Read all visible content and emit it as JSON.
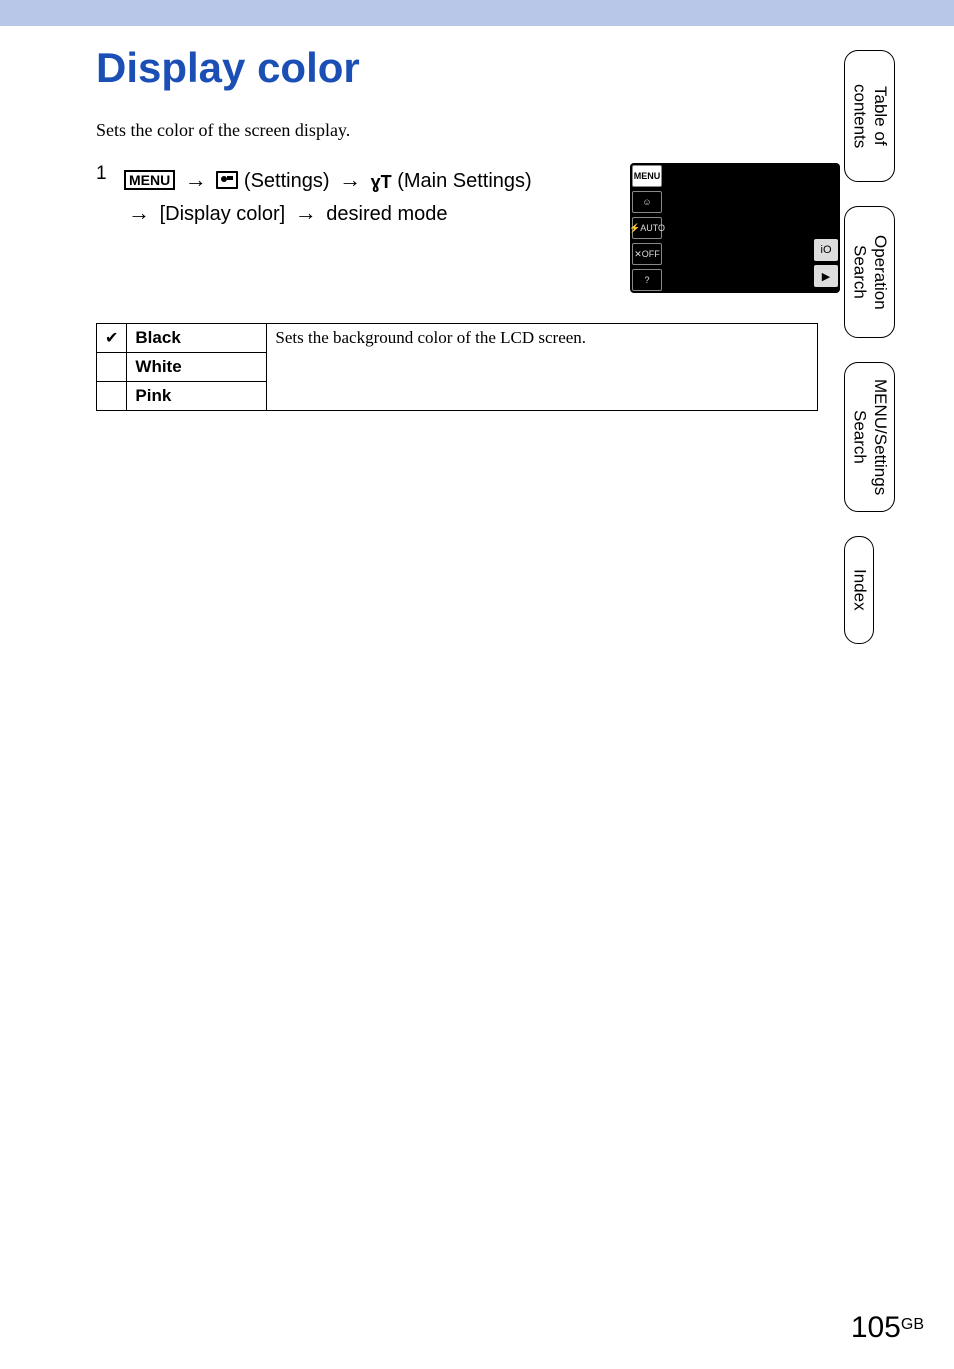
{
  "title": "Display color",
  "description": "Sets the color of the screen display.",
  "step": {
    "num": "1",
    "menu_label": "MENU",
    "settings_label": "(Settings)",
    "main_settings_label": "(Main Settings)",
    "line2_a": "[Display color]",
    "line2_b": "desired mode",
    "arrow": "→"
  },
  "screenshot": {
    "left_buttons": [
      "MENU",
      "☺",
      "⚡AUTO",
      "✕OFF",
      "?"
    ],
    "right_buttons": [
      "iO",
      "▶"
    ]
  },
  "table": {
    "rows": [
      {
        "check": "✔",
        "label": "Black"
      },
      {
        "check": "",
        "label": "White"
      },
      {
        "check": "",
        "label": "Pink"
      }
    ],
    "desc": "Sets the background color of the LCD screen."
  },
  "tabs": [
    "Table of contents",
    "Operation Search",
    "MENU/Settings Search",
    "Index"
  ],
  "page_number": "105",
  "page_suffix": "GB",
  "colors": {
    "topbar": "#b8c6e8",
    "title": "#1b4fb6",
    "screenshot_bg": "#000000"
  }
}
